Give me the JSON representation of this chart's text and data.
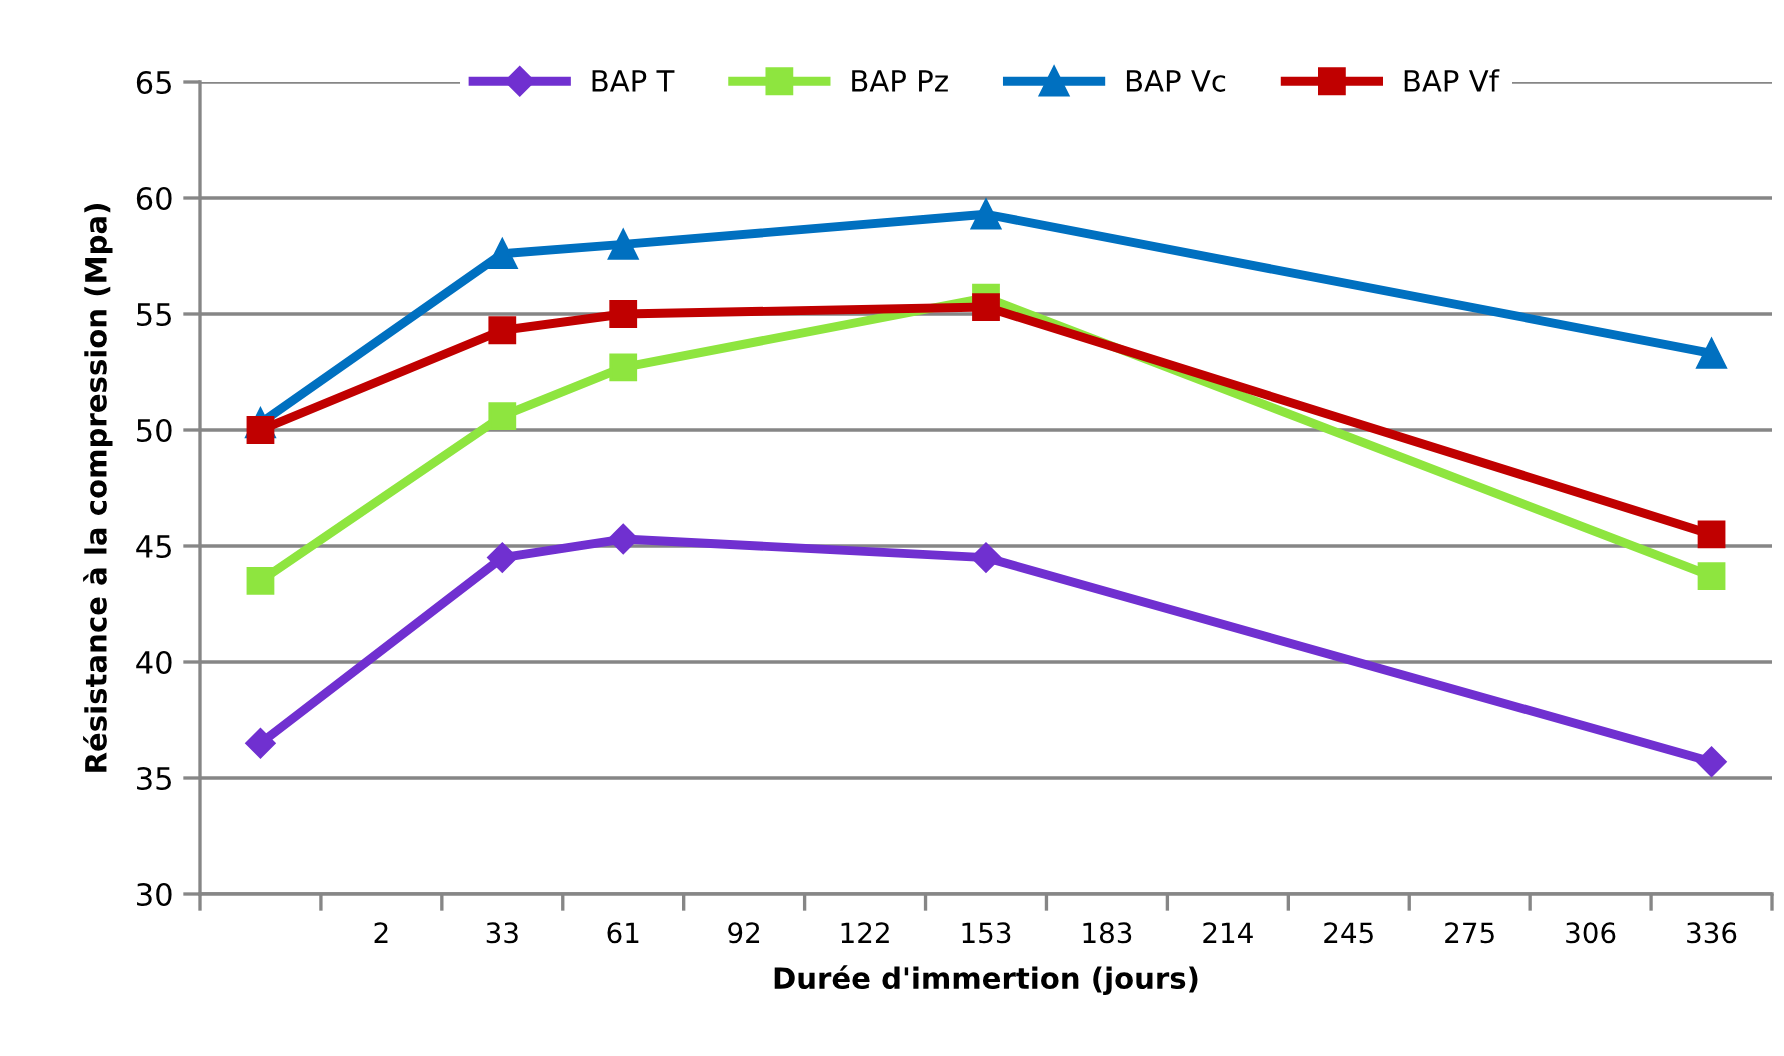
{
  "chart_data": {
    "type": "line",
    "xlabel": "Durée d'immertion (jours)",
    "ylabel": "Résistance à la compression (Mpa)",
    "categories": [
      null,
      "2",
      "33",
      "61",
      "92",
      "122",
      "153",
      "183",
      "214",
      "245",
      "275",
      "306",
      "336"
    ],
    "series": [
      {
        "name": "BAP T",
        "color": "#7030d0",
        "marker": "diamond",
        "values": [
          36.5,
          null,
          44.5,
          45.3,
          null,
          null,
          44.5,
          null,
          null,
          null,
          null,
          null,
          35.7
        ]
      },
      {
        "name": "BAP Pz",
        "color": "#8ee53f",
        "marker": "square",
        "values": [
          43.5,
          null,
          50.6,
          52.7,
          null,
          null,
          55.7,
          null,
          null,
          null,
          null,
          null,
          43.7
        ]
      },
      {
        "name": "BAP Vc",
        "color": "#0070c0",
        "marker": "triangle",
        "values": [
          50.3,
          null,
          57.6,
          58.0,
          null,
          null,
          59.3,
          null,
          null,
          null,
          null,
          null,
          53.3
        ]
      },
      {
        "name": "BAP Vf",
        "color": "#c00000",
        "marker": "square",
        "values": [
          50.0,
          null,
          54.3,
          55.0,
          null,
          null,
          55.3,
          null,
          null,
          null,
          null,
          null,
          45.5
        ]
      }
    ],
    "ylim": [
      30,
      65
    ],
    "yticks": [
      30,
      35,
      40,
      45,
      50,
      55,
      60,
      65
    ],
    "grid": "y",
    "legend": "top",
    "line_style": "solid"
  }
}
